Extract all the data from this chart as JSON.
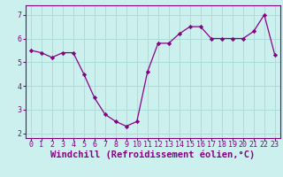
{
  "x": [
    0,
    1,
    2,
    3,
    4,
    5,
    6,
    7,
    8,
    9,
    10,
    11,
    12,
    13,
    14,
    15,
    16,
    17,
    18,
    19,
    20,
    21,
    22,
    23
  ],
  "y": [
    5.5,
    5.4,
    5.2,
    5.4,
    5.4,
    4.5,
    3.5,
    2.8,
    2.5,
    2.3,
    2.5,
    4.6,
    5.8,
    5.8,
    6.2,
    6.5,
    6.5,
    6.0,
    6.0,
    6.0,
    6.0,
    6.3,
    7.0,
    5.3
  ],
  "line_color": "#880088",
  "marker": "D",
  "marker_size": 2.2,
  "bg_color": "#ccf0ee",
  "grid_color": "#aaddda",
  "xlabel": "Windchill (Refroidissement éolien,°C)",
  "xlabel_fontsize": 7.5,
  "xlim": [
    -0.5,
    23.5
  ],
  "ylim": [
    1.8,
    7.4
  ],
  "yticks": [
    2,
    3,
    4,
    5,
    6,
    7
  ],
  "xticks": [
    0,
    1,
    2,
    3,
    4,
    5,
    6,
    7,
    8,
    9,
    10,
    11,
    12,
    13,
    14,
    15,
    16,
    17,
    18,
    19,
    20,
    21,
    22,
    23
  ],
  "tick_fontsize": 6.0,
  "spine_color": "#880088",
  "linewidth": 0.9
}
